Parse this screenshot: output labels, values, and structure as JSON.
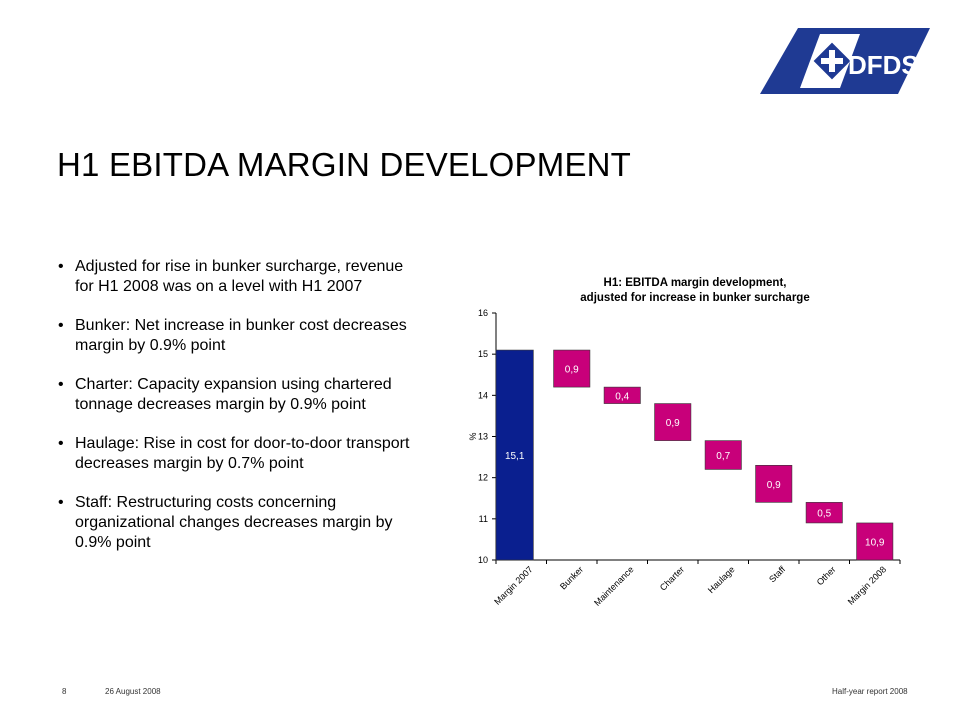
{
  "header": {
    "logo_text": "DFDS",
    "title": "H1 EBITDA MARGIN DEVELOPMENT"
  },
  "bullets": [
    "Adjusted for rise in bunker surcharge, revenue for H1 2008 was on a level with H1 2007",
    "Bunker: Net increase in bunker cost decreases margin by 0.9% point",
    "Charter: Capacity expansion using chartered tonnage decreases margin by 0.9% point",
    "Haulage: Rise in cost for door-to-door transport decreases margin by 0.7% point",
    "Staff: Restructuring costs concerning organizational changes decreases margin by 0.9% point"
  ],
  "colors": {
    "logo_blue": "#1f3a93",
    "total_bar": "#0a1f8f",
    "delta_bar": "#c8007a"
  },
  "chart_data": {
    "type": "bar",
    "title_line1": "H1: EBITDA margin development,",
    "title_line2": "adjusted for increase in bunker surcharge",
    "ylabel": "%",
    "ylim": [
      10,
      16
    ],
    "yticks": [
      "10",
      "11",
      "12",
      "13",
      "14",
      "15",
      "16"
    ],
    "grid": false,
    "categories": [
      "Margin 2007",
      "Bunker",
      "Maintenance",
      "Charter",
      "Haulage",
      "Staff",
      "Other",
      "Margin 2008"
    ],
    "bars": [
      {
        "label": "15,1",
        "kind": "total",
        "bottom": 10,
        "top": 15.1
      },
      {
        "label": "0,9",
        "kind": "delta",
        "bottom": 14.2,
        "top": 15.1
      },
      {
        "label": "0,4",
        "kind": "delta",
        "bottom": 13.8,
        "top": 14.2
      },
      {
        "label": "0,9",
        "kind": "delta",
        "bottom": 12.9,
        "top": 13.8
      },
      {
        "label": "0,7",
        "kind": "delta",
        "bottom": 12.2,
        "top": 12.9
      },
      {
        "label": "0,9",
        "kind": "delta",
        "bottom": 11.4,
        "top": 12.3
      },
      {
        "label": "0,5",
        "kind": "delta",
        "bottom": 10.9,
        "top": 11.4
      },
      {
        "label": "10,9",
        "kind": "delta",
        "bottom": 10.0,
        "top": 10.9
      }
    ]
  },
  "footer": {
    "page_number": "8",
    "date": "26 August 2008",
    "report": "Half-year report 2008"
  }
}
